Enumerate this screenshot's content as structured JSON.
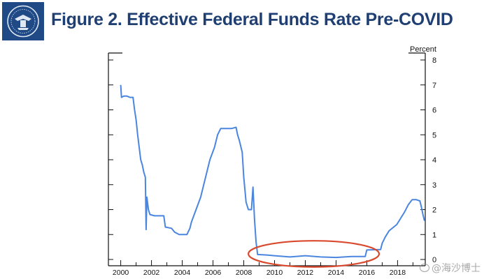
{
  "header": {
    "title": "Figure 2. Effective Federal Funds Rate Pre-COVID",
    "logo_color": "#1f4a86",
    "title_color": "#1f3f73"
  },
  "watermark": {
    "text": "@海沙博士"
  },
  "colors": {
    "line": "#4a86e0",
    "ellipse": "#d9492e",
    "axis": "#111111"
  },
  "chart_data": {
    "type": "line",
    "title": "Figure 2. Effective Federal Funds Rate Pre-COVID",
    "ylabel": "Percent",
    "xlabel": "",
    "xlim": [
      1999.2,
      2019.8
    ],
    "ylim": [
      0,
      8
    ],
    "x_ticks": [
      2000,
      2002,
      2004,
      2006,
      2008,
      2010,
      2012,
      2014,
      2016,
      2018
    ],
    "x_tick_labels": [
      "2000",
      "2002",
      "2004",
      "2006",
      "2008",
      "2010",
      "2012",
      "2014",
      "2016",
      "2018"
    ],
    "y_ticks": [
      0,
      1,
      2,
      3,
      4,
      5,
      6,
      7,
      8
    ],
    "y_tick_labels": [
      "0",
      "1",
      "2",
      "3",
      "4",
      "5",
      "6",
      "7",
      "8"
    ],
    "series": [
      {
        "name": "Effective Federal Funds Rate",
        "points": [
          [
            2000.0,
            7.0
          ],
          [
            2000.05,
            6.5
          ],
          [
            2000.2,
            6.55
          ],
          [
            2000.4,
            6.55
          ],
          [
            2000.6,
            6.5
          ],
          [
            2000.8,
            6.5
          ],
          [
            2000.9,
            6.0
          ],
          [
            2001.0,
            5.6
          ],
          [
            2001.1,
            5.0
          ],
          [
            2001.2,
            4.5
          ],
          [
            2001.3,
            4.0
          ],
          [
            2001.4,
            3.8
          ],
          [
            2001.5,
            3.5
          ],
          [
            2001.6,
            3.3
          ],
          [
            2001.65,
            1.2
          ],
          [
            2001.7,
            2.5
          ],
          [
            2001.8,
            2.0
          ],
          [
            2001.9,
            1.8
          ],
          [
            2002.2,
            1.75
          ],
          [
            2002.5,
            1.75
          ],
          [
            2002.8,
            1.75
          ],
          [
            2002.9,
            1.3
          ],
          [
            2003.3,
            1.25
          ],
          [
            2003.5,
            1.1
          ],
          [
            2003.8,
            1.0
          ],
          [
            2004.3,
            1.0
          ],
          [
            2004.5,
            1.25
          ],
          [
            2004.6,
            1.5
          ],
          [
            2004.9,
            2.0
          ],
          [
            2005.2,
            2.5
          ],
          [
            2005.4,
            3.0
          ],
          [
            2005.6,
            3.5
          ],
          [
            2005.8,
            4.0
          ],
          [
            2006.1,
            4.5
          ],
          [
            2006.3,
            5.0
          ],
          [
            2006.5,
            5.25
          ],
          [
            2006.9,
            5.25
          ],
          [
            2007.2,
            5.25
          ],
          [
            2007.5,
            5.3
          ],
          [
            2007.6,
            5.0
          ],
          [
            2007.7,
            4.8
          ],
          [
            2007.9,
            4.3
          ],
          [
            2008.0,
            3.3
          ],
          [
            2008.15,
            2.3
          ],
          [
            2008.3,
            2.0
          ],
          [
            2008.5,
            2.0
          ],
          [
            2008.6,
            2.9
          ],
          [
            2008.7,
            1.6
          ],
          [
            2008.8,
            0.7
          ],
          [
            2008.9,
            0.2
          ],
          [
            2009.5,
            0.18
          ],
          [
            2010.0,
            0.15
          ],
          [
            2011.0,
            0.1
          ],
          [
            2012.0,
            0.15
          ],
          [
            2013.0,
            0.1
          ],
          [
            2014.0,
            0.08
          ],
          [
            2015.0,
            0.12
          ],
          [
            2015.9,
            0.12
          ],
          [
            2016.0,
            0.38
          ],
          [
            2016.9,
            0.4
          ],
          [
            2017.0,
            0.65
          ],
          [
            2017.2,
            0.9
          ],
          [
            2017.45,
            1.15
          ],
          [
            2017.95,
            1.4
          ],
          [
            2018.2,
            1.65
          ],
          [
            2018.45,
            1.9
          ],
          [
            2018.7,
            2.2
          ],
          [
            2018.95,
            2.4
          ],
          [
            2019.2,
            2.4
          ],
          [
            2019.45,
            2.35
          ],
          [
            2019.55,
            2.1
          ],
          [
            2019.65,
            1.8
          ],
          [
            2019.75,
            1.55
          ]
        ]
      }
    ],
    "annotations": [
      {
        "type": "ellipse",
        "description": "highlight zero lower bound period",
        "x_range": [
          2008.3,
          2016.8
        ],
        "y_range": [
          -0.3,
          0.75
        ]
      }
    ]
  }
}
